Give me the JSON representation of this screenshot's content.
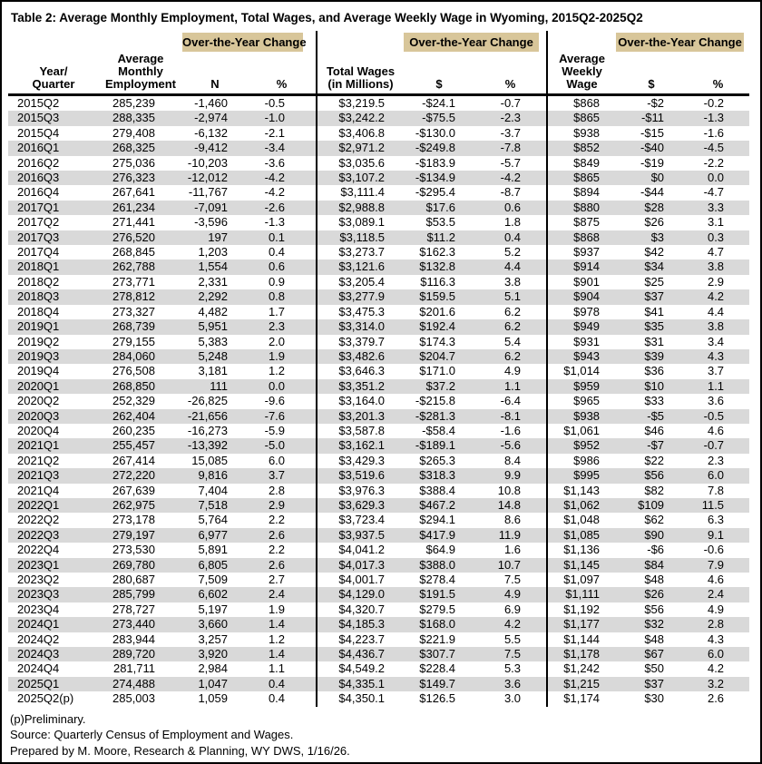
{
  "title": "Table 2: Average Monthly Employment, Total Wages, and Average Weekly Wage in Wyoming, 2015Q2-2025Q2",
  "colors": {
    "band": "#d8c69a",
    "stripe": "#d9d9d9",
    "border": "#000000"
  },
  "table": {
    "group_header": "Over-the-Year Change",
    "col_headers": [
      "Year/\nQuarter",
      "Average\nMonthly\nEmployment",
      "N",
      "%",
      "Total Wages\n(in Millions)",
      "$",
      "%",
      "Average\nWeekly\nWage",
      "$",
      "%"
    ],
    "rows": [
      [
        "2015Q2",
        "285,239",
        "-1,460",
        "-0.5",
        "$3,219.5",
        "-$24.1",
        "-0.7",
        "$868",
        "-$2",
        "-0.2"
      ],
      [
        "2015Q3",
        "288,335",
        "-2,974",
        "-1.0",
        "$3,242.2",
        "-$75.5",
        "-2.3",
        "$865",
        "-$11",
        "-1.3"
      ],
      [
        "2015Q4",
        "279,408",
        "-6,132",
        "-2.1",
        "$3,406.8",
        "-$130.0",
        "-3.7",
        "$938",
        "-$15",
        "-1.6"
      ],
      [
        "2016Q1",
        "268,325",
        "-9,412",
        "-3.4",
        "$2,971.2",
        "-$249.8",
        "-7.8",
        "$852",
        "-$40",
        "-4.5"
      ],
      [
        "2016Q2",
        "275,036",
        "-10,203",
        "-3.6",
        "$3,035.6",
        "-$183.9",
        "-5.7",
        "$849",
        "-$19",
        "-2.2"
      ],
      [
        "2016Q3",
        "276,323",
        "-12,012",
        "-4.2",
        "$3,107.2",
        "-$134.9",
        "-4.2",
        "$865",
        "$0",
        "0.0"
      ],
      [
        "2016Q4",
        "267,641",
        "-11,767",
        "-4.2",
        "$3,111.4",
        "-$295.4",
        "-8.7",
        "$894",
        "-$44",
        "-4.7"
      ],
      [
        "2017Q1",
        "261,234",
        "-7,091",
        "-2.6",
        "$2,988.8",
        "$17.6",
        "0.6",
        "$880",
        "$28",
        "3.3"
      ],
      [
        "2017Q2",
        "271,441",
        "-3,596",
        "-1.3",
        "$3,089.1",
        "$53.5",
        "1.8",
        "$875",
        "$26",
        "3.1"
      ],
      [
        "2017Q3",
        "276,520",
        "197",
        "0.1",
        "$3,118.5",
        "$11.2",
        "0.4",
        "$868",
        "$3",
        "0.3"
      ],
      [
        "2017Q4",
        "268,845",
        "1,203",
        "0.4",
        "$3,273.7",
        "$162.3",
        "5.2",
        "$937",
        "$42",
        "4.7"
      ],
      [
        "2018Q1",
        "262,788",
        "1,554",
        "0.6",
        "$3,121.6",
        "$132.8",
        "4.4",
        "$914",
        "$34",
        "3.8"
      ],
      [
        "2018Q2",
        "273,771",
        "2,331",
        "0.9",
        "$3,205.4",
        "$116.3",
        "3.8",
        "$901",
        "$25",
        "2.9"
      ],
      [
        "2018Q3",
        "278,812",
        "2,292",
        "0.8",
        "$3,277.9",
        "$159.5",
        "5.1",
        "$904",
        "$37",
        "4.2"
      ],
      [
        "2018Q4",
        "273,327",
        "4,482",
        "1.7",
        "$3,475.3",
        "$201.6",
        "6.2",
        "$978",
        "$41",
        "4.4"
      ],
      [
        "2019Q1",
        "268,739",
        "5,951",
        "2.3",
        "$3,314.0",
        "$192.4",
        "6.2",
        "$949",
        "$35",
        "3.8"
      ],
      [
        "2019Q2",
        "279,155",
        "5,383",
        "2.0",
        "$3,379.7",
        "$174.3",
        "5.4",
        "$931",
        "$31",
        "3.4"
      ],
      [
        "2019Q3",
        "284,060",
        "5,248",
        "1.9",
        "$3,482.6",
        "$204.7",
        "6.2",
        "$943",
        "$39",
        "4.3"
      ],
      [
        "2019Q4",
        "276,508",
        "3,181",
        "1.2",
        "$3,646.3",
        "$171.0",
        "4.9",
        "$1,014",
        "$36",
        "3.7"
      ],
      [
        "2020Q1",
        "268,850",
        "111",
        "0.0",
        "$3,351.2",
        "$37.2",
        "1.1",
        "$959",
        "$10",
        "1.1"
      ],
      [
        "2020Q2",
        "252,329",
        "-26,825",
        "-9.6",
        "$3,164.0",
        "-$215.8",
        "-6.4",
        "$965",
        "$33",
        "3.6"
      ],
      [
        "2020Q3",
        "262,404",
        "-21,656",
        "-7.6",
        "$3,201.3",
        "-$281.3",
        "-8.1",
        "$938",
        "-$5",
        "-0.5"
      ],
      [
        "2020Q4",
        "260,235",
        "-16,273",
        "-5.9",
        "$3,587.8",
        "-$58.4",
        "-1.6",
        "$1,061",
        "$46",
        "4.6"
      ],
      [
        "2021Q1",
        "255,457",
        "-13,392",
        "-5.0",
        "$3,162.1",
        "-$189.1",
        "-5.6",
        "$952",
        "-$7",
        "-0.7"
      ],
      [
        "2021Q2",
        "267,414",
        "15,085",
        "6.0",
        "$3,429.3",
        "$265.3",
        "8.4",
        "$986",
        "$22",
        "2.3"
      ],
      [
        "2021Q3",
        "272,220",
        "9,816",
        "3.7",
        "$3,519.6",
        "$318.3",
        "9.9",
        "$995",
        "$56",
        "6.0"
      ],
      [
        "2021Q4",
        "267,639",
        "7,404",
        "2.8",
        "$3,976.3",
        "$388.4",
        "10.8",
        "$1,143",
        "$82",
        "7.8"
      ],
      [
        "2022Q1",
        "262,975",
        "7,518",
        "2.9",
        "$3,629.3",
        "$467.2",
        "14.8",
        "$1,062",
        "$109",
        "11.5"
      ],
      [
        "2022Q2",
        "273,178",
        "5,764",
        "2.2",
        "$3,723.4",
        "$294.1",
        "8.6",
        "$1,048",
        "$62",
        "6.3"
      ],
      [
        "2022Q3",
        "279,197",
        "6,977",
        "2.6",
        "$3,937.5",
        "$417.9",
        "11.9",
        "$1,085",
        "$90",
        "9.1"
      ],
      [
        "2022Q4",
        "273,530",
        "5,891",
        "2.2",
        "$4,041.2",
        "$64.9",
        "1.6",
        "$1,136",
        "-$6",
        "-0.6"
      ],
      [
        "2023Q1",
        "269,780",
        "6,805",
        "2.6",
        "$4,017.3",
        "$388.0",
        "10.7",
        "$1,145",
        "$84",
        "7.9"
      ],
      [
        "2023Q2",
        "280,687",
        "7,509",
        "2.7",
        "$4,001.7",
        "$278.4",
        "7.5",
        "$1,097",
        "$48",
        "4.6"
      ],
      [
        "2023Q3",
        "285,799",
        "6,602",
        "2.4",
        "$4,129.0",
        "$191.5",
        "4.9",
        "$1,111",
        "$26",
        "2.4"
      ],
      [
        "2023Q4",
        "278,727",
        "5,197",
        "1.9",
        "$4,320.7",
        "$279.5",
        "6.9",
        "$1,192",
        "$56",
        "4.9"
      ],
      [
        "2024Q1",
        "273,440",
        "3,660",
        "1.4",
        "$4,185.3",
        "$168.0",
        "4.2",
        "$1,177",
        "$32",
        "2.8"
      ],
      [
        "2024Q2",
        "283,944",
        "3,257",
        "1.2",
        "$4,223.7",
        "$221.9",
        "5.5",
        "$1,144",
        "$48",
        "4.3"
      ],
      [
        "2024Q3",
        "289,720",
        "3,920",
        "1.4",
        "$4,436.7",
        "$307.7",
        "7.5",
        "$1,178",
        "$67",
        "6.0"
      ],
      [
        "2024Q4",
        "281,711",
        "2,984",
        "1.1",
        "$4,549.2",
        "$228.4",
        "5.3",
        "$1,242",
        "$50",
        "4.2"
      ],
      [
        "2025Q1",
        "274,488",
        "1,047",
        "0.4",
        "$4,335.1",
        "$149.7",
        "3.6",
        "$1,215",
        "$37",
        "3.2"
      ],
      [
        "2025Q2(p)",
        "285,003",
        "1,059",
        "0.4",
        "$4,350.1",
        "$126.5",
        "3.0",
        "$1,174",
        "$30",
        "2.6"
      ]
    ]
  },
  "footer": {
    "note": "(p)Preliminary.",
    "source": "Source: Quarterly Census of Employment and Wages.",
    "prepared": "Prepared by M. Moore, Research & Planning, WY DWS, 1/16/26."
  }
}
